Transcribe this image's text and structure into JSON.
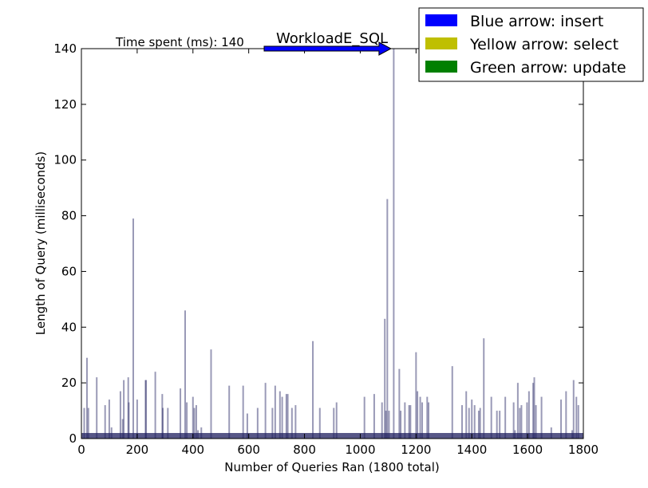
{
  "chart_data": {
    "type": "bar",
    "title": "WorkloadE_SQL",
    "xlabel": "Number of Queries Ran (1800 total)",
    "ylabel": "Length of Query (milliseconds)",
    "xlim": [
      0,
      1800
    ],
    "ylim": [
      0,
      140
    ],
    "xticks": [
      "0",
      "200",
      "400",
      "600",
      "800",
      "1000",
      "1200",
      "1400",
      "1600",
      "1800"
    ],
    "yticks": [
      "0",
      "20",
      "40",
      "60",
      "80",
      "100",
      "120",
      "140"
    ],
    "grid": false,
    "legend_position": "top-right",
    "annotation": {
      "label": "Time spent (ms): 140",
      "arrow_at_x": 1110,
      "arrow_at_y": 140
    },
    "legend": [
      {
        "label": "Blue arrow: insert",
        "color": "#0000ff"
      },
      {
        "label": "Yellow arrow: select",
        "color": "#bfbf00"
      },
      {
        "label": "Green arrow: update",
        "color": "#008000"
      }
    ],
    "bar_color": "#1f1f5f",
    "baseline_value": 2,
    "spikes": [
      {
        "x": 10,
        "y": 11
      },
      {
        "x": 20,
        "y": 29
      },
      {
        "x": 25,
        "y": 11
      },
      {
        "x": 55,
        "y": 22
      },
      {
        "x": 85,
        "y": 12
      },
      {
        "x": 100,
        "y": 14
      },
      {
        "x": 108,
        "y": 4
      },
      {
        "x": 140,
        "y": 17
      },
      {
        "x": 148,
        "y": 7
      },
      {
        "x": 152,
        "y": 21
      },
      {
        "x": 168,
        "y": 22
      },
      {
        "x": 170,
        "y": 13
      },
      {
        "x": 186,
        "y": 79
      },
      {
        "x": 200,
        "y": 14
      },
      {
        "x": 230,
        "y": 21
      },
      {
        "x": 232,
        "y": 21
      },
      {
        "x": 265,
        "y": 24
      },
      {
        "x": 290,
        "y": 16
      },
      {
        "x": 292,
        "y": 11
      },
      {
        "x": 310,
        "y": 11
      },
      {
        "x": 355,
        "y": 18
      },
      {
        "x": 372,
        "y": 46
      },
      {
        "x": 378,
        "y": 13
      },
      {
        "x": 400,
        "y": 15
      },
      {
        "x": 405,
        "y": 11
      },
      {
        "x": 412,
        "y": 12
      },
      {
        "x": 418,
        "y": 3
      },
      {
        "x": 430,
        "y": 4
      },
      {
        "x": 465,
        "y": 32
      },
      {
        "x": 530,
        "y": 19
      },
      {
        "x": 580,
        "y": 19
      },
      {
        "x": 595,
        "y": 9
      },
      {
        "x": 632,
        "y": 11
      },
      {
        "x": 660,
        "y": 20
      },
      {
        "x": 685,
        "y": 11
      },
      {
        "x": 695,
        "y": 19
      },
      {
        "x": 712,
        "y": 17
      },
      {
        "x": 720,
        "y": 15
      },
      {
        "x": 735,
        "y": 16
      },
      {
        "x": 740,
        "y": 16
      },
      {
        "x": 755,
        "y": 11
      },
      {
        "x": 768,
        "y": 12
      },
      {
        "x": 830,
        "y": 35
      },
      {
        "x": 855,
        "y": 11
      },
      {
        "x": 905,
        "y": 11
      },
      {
        "x": 915,
        "y": 13
      },
      {
        "x": 1015,
        "y": 15
      },
      {
        "x": 1050,
        "y": 16
      },
      {
        "x": 1078,
        "y": 13
      },
      {
        "x": 1088,
        "y": 43
      },
      {
        "x": 1092,
        "y": 10
      },
      {
        "x": 1097,
        "y": 86
      },
      {
        "x": 1103,
        "y": 10
      },
      {
        "x": 1120,
        "y": 140
      },
      {
        "x": 1140,
        "y": 25
      },
      {
        "x": 1145,
        "y": 10
      },
      {
        "x": 1160,
        "y": 13
      },
      {
        "x": 1175,
        "y": 12
      },
      {
        "x": 1180,
        "y": 12
      },
      {
        "x": 1200,
        "y": 31
      },
      {
        "x": 1205,
        "y": 17
      },
      {
        "x": 1215,
        "y": 15
      },
      {
        "x": 1222,
        "y": 13
      },
      {
        "x": 1240,
        "y": 15
      },
      {
        "x": 1245,
        "y": 13
      },
      {
        "x": 1330,
        "y": 26
      },
      {
        "x": 1365,
        "y": 12
      },
      {
        "x": 1380,
        "y": 17
      },
      {
        "x": 1390,
        "y": 11
      },
      {
        "x": 1400,
        "y": 14
      },
      {
        "x": 1410,
        "y": 12
      },
      {
        "x": 1425,
        "y": 10
      },
      {
        "x": 1430,
        "y": 11
      },
      {
        "x": 1443,
        "y": 36
      },
      {
        "x": 1470,
        "y": 15
      },
      {
        "x": 1490,
        "y": 10
      },
      {
        "x": 1500,
        "y": 10
      },
      {
        "x": 1520,
        "y": 15
      },
      {
        "x": 1550,
        "y": 13
      },
      {
        "x": 1555,
        "y": 3
      },
      {
        "x": 1565,
        "y": 20
      },
      {
        "x": 1572,
        "y": 11
      },
      {
        "x": 1578,
        "y": 12
      },
      {
        "x": 1598,
        "y": 13
      },
      {
        "x": 1605,
        "y": 17
      },
      {
        "x": 1620,
        "y": 20
      },
      {
        "x": 1624,
        "y": 22
      },
      {
        "x": 1630,
        "y": 12
      },
      {
        "x": 1650,
        "y": 15
      },
      {
        "x": 1685,
        "y": 4
      },
      {
        "x": 1720,
        "y": 14
      },
      {
        "x": 1738,
        "y": 17
      },
      {
        "x": 1760,
        "y": 3
      },
      {
        "x": 1765,
        "y": 21
      },
      {
        "x": 1775,
        "y": 15
      },
      {
        "x": 1782,
        "y": 12
      }
    ]
  }
}
